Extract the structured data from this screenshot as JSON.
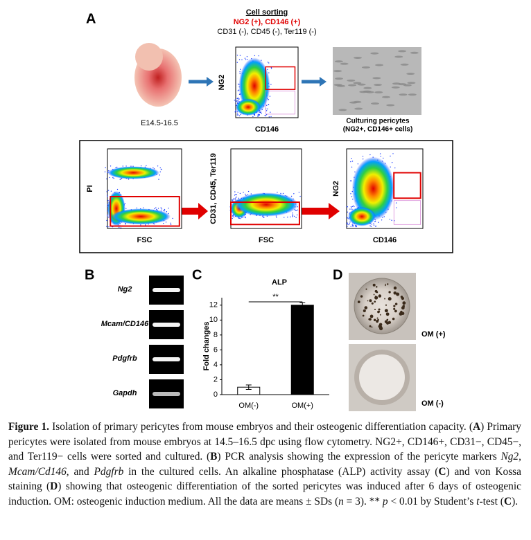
{
  "panel_a": {
    "label": "A",
    "sorting_title": "Cell sorting",
    "sorting_positive": "NG2 (+), CD146 (+)",
    "sorting_negative": "CD31 (-), CD45 (-), Ter119 (-)",
    "embryo_label": "E14.5-16.5",
    "sort_plot": {
      "y_label": "NG2",
      "x_label": "CD146"
    },
    "culture_label": [
      "Culturing pericytes",
      "(NG2+, CD146+ cells)"
    ],
    "gating": [
      {
        "y_label": "PI",
        "x_label": "FSC"
      },
      {
        "y_label": "CD31, CD45, Ter119",
        "x_label": "FSC"
      },
      {
        "y_label": "NG2",
        "x_label": "CD146"
      }
    ]
  },
  "panel_b": {
    "label": "B",
    "genes": [
      "Ng2",
      "Mcam/CD146",
      "Pdgfrb",
      "Gapdh"
    ]
  },
  "chart_data": {
    "type": "bar",
    "panel_label": "C",
    "title": "ALP",
    "y_label": "Fold changes",
    "categories": [
      "OM(-)",
      "OM(+)"
    ],
    "values": [
      1.0,
      12.0
    ],
    "errors": [
      0.3,
      0.35
    ],
    "colors": [
      "#ffffff",
      "#000000"
    ],
    "ylim": [
      0,
      13
    ],
    "yticks": [
      0,
      2,
      4,
      6,
      8,
      10,
      12
    ],
    "annotation": "**"
  },
  "panel_d": {
    "label": "D",
    "conditions": [
      "OM (+)",
      "OM (-)"
    ]
  },
  "caption": {
    "runs": [
      "Figure 1.",
      " Isolation of primary pericytes from mouse embryos and their osteogenic differentiation capacity. (",
      "A",
      ") Primary pericytes were isolated from mouse embryos at 14.5–16.5 dpc using flow cytometry. NG2+, CD146+, CD31−, CD45−, and Ter119− cells were sorted and cultured. (",
      "B",
      ") PCR analysis showing the expression of the pericyte markers ",
      "Ng2",
      ", ",
      "Mcam/Cd146",
      ", and ",
      "Pdgfrb",
      " in the cultured cells. An alkaline phosphatase (ALP) activity assay (",
      "C",
      ") and von Kossa staining (",
      "D",
      ") showing that osteogenic differentiation of the sorted pericytes was induced after 6 days of osteogenic induction. OM: osteogenic induction medium. All the data are means ± SDs (",
      "n",
      " = 3). ** ",
      "p",
      " < 0.01 by Student’s ",
      "t",
      "-test (",
      "C",
      ")."
    ]
  }
}
